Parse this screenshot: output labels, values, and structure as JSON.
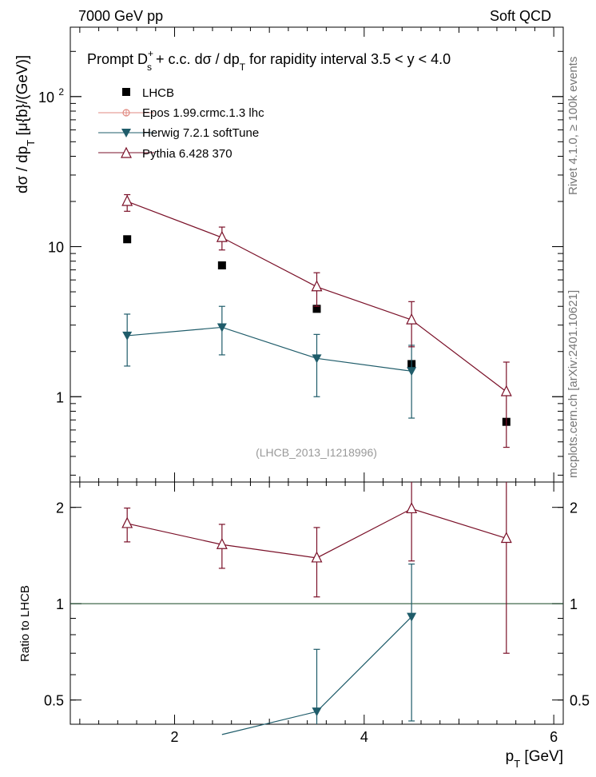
{
  "header": {
    "left": "7000 GeV pp",
    "right": "Soft QCD"
  },
  "side": {
    "rivet": "Rivet 4.1.0, ≥ 100k events",
    "mcplots": "mcplots.cern.ch [arXiv:2401.10621]"
  },
  "plot": {
    "title_prefix": "Prompt D",
    "title_sup": "+",
    "title_sub": "s",
    "title_mid": " + c.c.  dσ / dp",
    "title_sub2": "T",
    "title_suffix": " for rapidity interval 3.5 < y < 4.0",
    "ylabel_main": "dσ / dp",
    "ylabel_sub": "T",
    "ylabel_units": " [μ{b}/(GeV)]",
    "ylabel_ratio": "Ratio to LHCB",
    "xlabel_main": "p",
    "xlabel_sub": "T",
    "xlabel_units": " [GeV]",
    "analysis_id": "(LHCB_2013_I1218996)"
  },
  "legend": [
    {
      "key": "lhcb",
      "label": "LHCB"
    },
    {
      "key": "epos",
      "label": "Epos 1.99.crmc.1.3 lhc"
    },
    {
      "key": "herwig",
      "label": "Herwig 7.2.1 softTune"
    },
    {
      "key": "pythia",
      "label": "Pythia 6.428 370"
    }
  ],
  "colors": {
    "lhcb": "#000000",
    "epos": "#e08a80",
    "herwig": "#1f5c6a",
    "pythia": "#7a1028",
    "ref_line": "#2e5a3a"
  },
  "chart_data": [
    {
      "type": "scatter",
      "panel": "main",
      "yscale": "log",
      "xlim": [
        0.9,
        6.1
      ],
      "ylim": [
        0.27,
        290
      ],
      "x_ticks": [
        2,
        4,
        6
      ],
      "y_ticks": [
        {
          "v": 1,
          "label": "1"
        },
        {
          "v": 10,
          "label": "10"
        },
        {
          "v": 100,
          "label": "10",
          "sup": "2"
        }
      ],
      "x": [
        1.5,
        2.5,
        3.5,
        4.5,
        5.5
      ],
      "series": [
        {
          "name": "LHCB",
          "key": "lhcb",
          "marker": "square",
          "line": false,
          "x": [
            1.5,
            2.5,
            3.5,
            4.5,
            5.5
          ],
          "values": [
            11.2,
            7.5,
            3.85,
            1.65,
            0.68
          ],
          "err_low": [
            0,
            0,
            0,
            0,
            0
          ],
          "err_high": [
            0,
            0,
            0,
            0,
            0
          ]
        },
        {
          "name": "Herwig 7.2.1 softTune",
          "key": "herwig",
          "marker": "triangle-down",
          "line": true,
          "x": [
            1.5,
            2.5,
            3.5,
            4.5
          ],
          "values": [
            2.55,
            2.9,
            1.8,
            1.48
          ],
          "err_low": [
            0.95,
            1.0,
            0.8,
            0.76
          ],
          "err_high": [
            1.0,
            1.1,
            0.8,
            0.72
          ]
        },
        {
          "name": "Pythia 6.428 370",
          "key": "pythia",
          "marker": "triangle-up-open",
          "line": true,
          "x": [
            1.5,
            2.5,
            3.5,
            4.5,
            5.5
          ],
          "values": [
            20.0,
            11.5,
            5.4,
            3.25,
            1.08
          ],
          "err_low": [
            2.8,
            2.0,
            1.4,
            1.1,
            0.62
          ],
          "err_high": [
            2.2,
            2.0,
            1.3,
            1.05,
            0.62
          ]
        }
      ]
    },
    {
      "type": "scatter",
      "panel": "ratio",
      "yscale": "log",
      "xlim": [
        0.9,
        6.1
      ],
      "ylim": [
        0.42,
        2.4
      ],
      "x_ticks": [
        2,
        4,
        6
      ],
      "y_ticks": [
        {
          "v": 0.5,
          "label": "0.5"
        },
        {
          "v": 1,
          "label": "1"
        },
        {
          "v": 2,
          "label": "2"
        }
      ],
      "reference": 1,
      "series": [
        {
          "name": "Herwig 7.2.1 softTune",
          "key": "herwig",
          "marker": "triangle-down",
          "line": true,
          "x": [
            2.5,
            3.5,
            4.5
          ],
          "values": [
            0.39,
            0.46,
            0.91
          ],
          "err_low": [
            0,
            0.2,
            0.48
          ],
          "err_high": [
            0,
            0.26,
            0.42
          ],
          "show_marker": [
            false,
            true,
            true
          ]
        },
        {
          "name": "Pythia 6.428 370",
          "key": "pythia",
          "marker": "triangle-up-open",
          "line": true,
          "x": [
            1.5,
            2.5,
            3.5,
            4.5,
            5.5
          ],
          "values": [
            1.78,
            1.53,
            1.39,
            1.98,
            1.6
          ],
          "err_low": [
            0.22,
            0.24,
            0.34,
            0.62,
            0.9
          ],
          "err_high": [
            0.21,
            0.24,
            0.34,
            0.65,
            0.9
          ]
        }
      ]
    }
  ]
}
